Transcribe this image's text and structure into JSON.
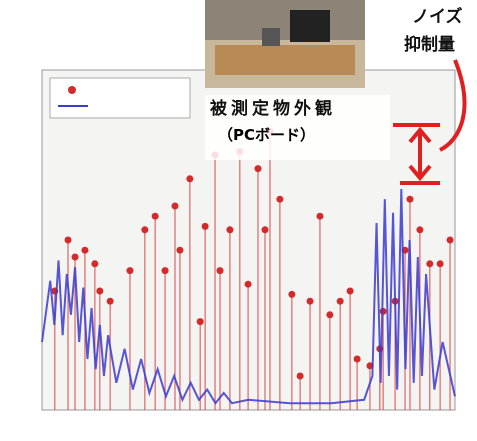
{
  "annotations": {
    "object_label": "被測定物外観",
    "object_sub": "（PCボード）",
    "noise_label": [
      "ノイズ",
      "抑制量"
    ]
  },
  "chart_data": {
    "type": "stem",
    "xlim": [
      0,
      100
    ],
    "ylim": [
      0,
      100
    ],
    "series": [
      {
        "style": "stem",
        "color": "#d42a2a",
        "x": [
          3.1,
          6.3,
          8.0,
          10.4,
          12.8,
          14.0,
          16.5,
          21.3,
          24.9,
          27.4,
          29.8,
          32.2,
          33.4,
          35.8,
          38.3,
          39.5,
          41.9,
          43.1,
          45.5,
          47.9,
          49.9,
          52.3,
          54.0,
          55.2,
          57.6,
          60.5,
          62.5,
          64.9,
          67.3,
          69.7,
          72.2,
          74.6,
          76.3,
          79.4,
          81.8,
          82.6,
          85.5,
          87.9,
          89.1,
          91.5,
          93.9,
          96.4,
          98.8
        ],
        "values": [
          35,
          50,
          45,
          47,
          43,
          35,
          32,
          41,
          53,
          57,
          41,
          60,
          47,
          68,
          26,
          54,
          75,
          41,
          53,
          76,
          37,
          71,
          53,
          82,
          62,
          34,
          10,
          32,
          57,
          28,
          32,
          35,
          15,
          13,
          18,
          29,
          32,
          47,
          62,
          53,
          43,
          43,
          50
        ]
      },
      {
        "style": "line",
        "color": "#3a3ad0",
        "x": [
          0,
          2,
          3,
          4,
          5,
          6,
          7,
          8,
          9,
          10,
          11,
          12,
          13,
          14,
          15,
          16,
          18,
          20,
          22,
          24,
          26,
          28,
          30,
          32,
          34,
          36,
          38,
          40,
          42,
          44,
          46,
          50,
          60,
          70,
          78,
          80,
          81,
          82,
          83,
          84,
          85,
          86,
          87,
          88,
          89,
          90,
          91,
          92,
          93,
          95,
          97,
          100
        ],
        "values": [
          20,
          38,
          25,
          44,
          22,
          40,
          28,
          42,
          20,
          36,
          15,
          30,
          12,
          25,
          10,
          22,
          8,
          18,
          6,
          15,
          5,
          12,
          4,
          10,
          3,
          8,
          3,
          6,
          2,
          5,
          2,
          3,
          2,
          2,
          3,
          10,
          55,
          8,
          62,
          10,
          58,
          6,
          65,
          12,
          50,
          8,
          45,
          10,
          40,
          6,
          20,
          4
        ]
      }
    ]
  }
}
